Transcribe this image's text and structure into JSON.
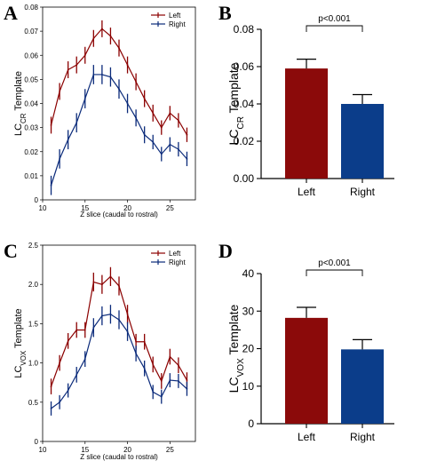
{
  "panels": {
    "a": {
      "letter": "A"
    },
    "b": {
      "letter": "B"
    },
    "c": {
      "letter": "C"
    },
    "d": {
      "letter": "D"
    }
  },
  "colors": {
    "left": "#8b0000",
    "right": "#0a2a7a",
    "bar_left": "#8b0a0a",
    "bar_right": "#0b3d8a"
  },
  "chart_data": [
    {
      "id": "A",
      "type": "line",
      "xlabel": "Z slice (caudal to rostral)",
      "ylabel_main": "LC",
      "ylabel_sub": "CR",
      "ylabel_rest": " Template",
      "xlim": [
        10,
        28
      ],
      "ylim": [
        0,
        0.08
      ],
      "xticks": [
        "10",
        "15",
        "20",
        "25"
      ],
      "xtick_values": [
        10,
        15,
        20,
        25
      ],
      "yticks": [
        "0",
        "0.01",
        "0.02",
        "0.03",
        "0.04",
        "0.05",
        "0.06",
        "0.07",
        "0.08"
      ],
      "ytick_values": [
        0,
        0.01,
        0.02,
        0.03,
        0.04,
        0.05,
        0.06,
        0.07,
        0.08
      ],
      "legend_position": "top-right",
      "x": [
        11,
        12,
        13,
        14,
        15,
        16,
        17,
        18,
        19,
        20,
        21,
        22,
        23,
        24,
        25,
        26,
        27
      ],
      "series": [
        {
          "name": "Left",
          "color": "#8b0000",
          "values": [
            0.031,
            0.045,
            0.054,
            0.056,
            0.06,
            0.067,
            0.071,
            0.068,
            0.063,
            0.056,
            0.049,
            0.042,
            0.036,
            0.03,
            0.036,
            0.033,
            0.027
          ],
          "errors": [
            0.0035,
            0.0035,
            0.0035,
            0.0035,
            0.0035,
            0.0035,
            0.0035,
            0.0035,
            0.0035,
            0.0035,
            0.0035,
            0.0035,
            0.0035,
            0.003,
            0.003,
            0.003,
            0.003
          ]
        },
        {
          "name": "Right",
          "color": "#0a2a7a",
          "values": [
            0.006,
            0.017,
            0.025,
            0.032,
            0.042,
            0.052,
            0.052,
            0.051,
            0.046,
            0.04,
            0.034,
            0.027,
            0.024,
            0.019,
            0.023,
            0.021,
            0.017
          ],
          "errors": [
            0.004,
            0.004,
            0.004,
            0.004,
            0.004,
            0.004,
            0.004,
            0.004,
            0.004,
            0.004,
            0.0035,
            0.0035,
            0.003,
            0.003,
            0.003,
            0.003,
            0.003
          ]
        }
      ]
    },
    {
      "id": "B",
      "type": "bar",
      "ylabel_main": "LC",
      "ylabel_sub": "CR",
      "ylabel_rest": " Template",
      "ylim": [
        0,
        0.08
      ],
      "yticks": [
        "0.00",
        "0.02",
        "0.04",
        "0.06",
        "0.08"
      ],
      "ytick_values": [
        0,
        0.02,
        0.04,
        0.06,
        0.08
      ],
      "categories": [
        "Left",
        "Right"
      ],
      "values": [
        0.059,
        0.04
      ],
      "errors": [
        0.005,
        0.005
      ],
      "significance": "p<0.001"
    },
    {
      "id": "C",
      "type": "line",
      "xlabel": "Z slice (caudal to rostral)",
      "ylabel_main": "LC",
      "ylabel_sub": "VOX",
      "ylabel_rest": " Template",
      "xlim": [
        10,
        28
      ],
      "ylim": [
        0,
        2.5
      ],
      "xticks": [
        "10",
        "15",
        "20",
        "25"
      ],
      "xtick_values": [
        10,
        15,
        20,
        25
      ],
      "yticks": [
        "0",
        "0.5",
        "1.0",
        "1.5",
        "2.0",
        "2.5"
      ],
      "ytick_values": [
        0,
        0.5,
        1.0,
        1.5,
        2.0,
        2.5
      ],
      "legend_position": "top-right",
      "x": [
        11,
        12,
        13,
        14,
        15,
        16,
        17,
        18,
        19,
        20,
        21,
        22,
        23,
        24,
        25,
        26,
        27
      ],
      "series": [
        {
          "name": "Left",
          "color": "#8b0000",
          "values": [
            0.7,
            1.0,
            1.28,
            1.42,
            1.42,
            2.03,
            2.0,
            2.1,
            1.98,
            1.62,
            1.27,
            1.27,
            0.98,
            0.77,
            1.08,
            0.97,
            0.78
          ],
          "errors": [
            0.1,
            0.1,
            0.1,
            0.1,
            0.1,
            0.12,
            0.12,
            0.12,
            0.12,
            0.12,
            0.1,
            0.1,
            0.1,
            0.1,
            0.1,
            0.1,
            0.1
          ]
        },
        {
          "name": "Right",
          "color": "#0a2a7a",
          "values": [
            0.42,
            0.5,
            0.65,
            0.85,
            1.05,
            1.45,
            1.6,
            1.62,
            1.55,
            1.4,
            1.12,
            0.93,
            0.63,
            0.57,
            0.78,
            0.77,
            0.67
          ],
          "errors": [
            0.09,
            0.09,
            0.09,
            0.1,
            0.1,
            0.12,
            0.12,
            0.12,
            0.12,
            0.12,
            0.1,
            0.1,
            0.09,
            0.09,
            0.09,
            0.09,
            0.09
          ]
        }
      ]
    },
    {
      "id": "D",
      "type": "bar",
      "ylabel_main": "LC",
      "ylabel_sub": "VOX",
      "ylabel_rest": " Template",
      "ylim": [
        0,
        40
      ],
      "yticks": [
        "0",
        "10",
        "20",
        "30",
        "40"
      ],
      "ytick_values": [
        0,
        10,
        20,
        30,
        40
      ],
      "categories": [
        "Left",
        "Right"
      ],
      "values": [
        28.2,
        19.8
      ],
      "errors": [
        2.8,
        2.6
      ],
      "significance": "p<0.001"
    }
  ]
}
